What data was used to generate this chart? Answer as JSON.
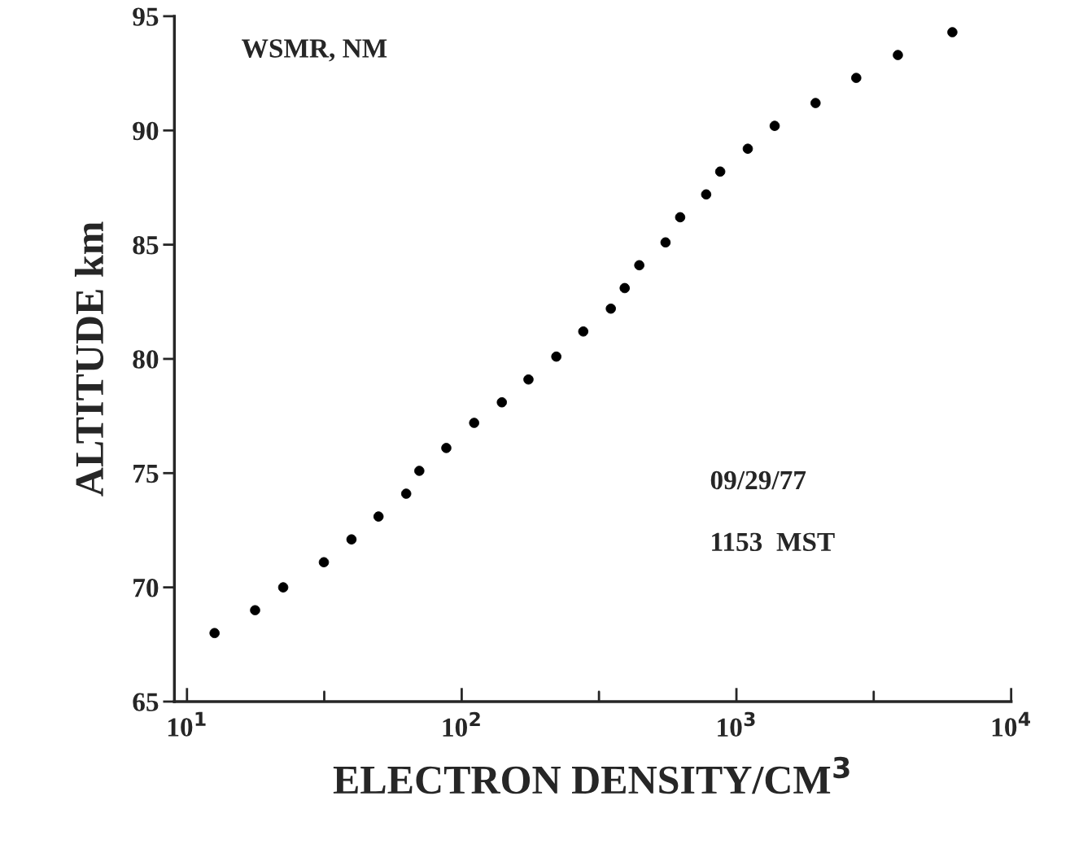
{
  "chart_data": {
    "type": "scatter",
    "xlabel": "ELECTRON DENSITY/CM$^{3}$",
    "ylabel": "ALTITUDE km",
    "x": [
      12.6,
      17.7,
      22.4,
      31.5,
      39.7,
      49.8,
      62.8,
      70.1,
      87.9,
      111,
      140,
      175,
      221,
      277,
      349,
      392,
      443,
      552,
      624,
      776,
      873,
      1100,
      1378,
      1941,
      2730,
      3870,
      6110
    ],
    "series": [
      {
        "color": "#000000",
        "values": [
          68.0,
          69.0,
          70.0,
          71.1,
          72.1,
          73.1,
          74.1,
          75.1,
          76.1,
          77.2,
          78.1,
          79.1,
          80.1,
          81.2,
          82.2,
          83.1,
          84.1,
          85.1,
          86.2,
          87.2,
          88.2,
          89.2,
          90.2,
          91.2,
          92.3,
          93.3,
          94.3
        ]
      }
    ],
    "log": "x",
    "marker": "circle",
    "grid": false,
    "xlim": [
      9,
      10000
    ],
    "xticks": [
      {
        "value": 10,
        "label": "10$^{1}$"
      },
      {
        "value": 31.6,
        "label": null
      },
      {
        "value": 100,
        "label": "10$^{2}$"
      },
      {
        "value": 316,
        "label": null
      },
      {
        "value": 1000,
        "label": "10$^{3}$"
      },
      {
        "value": 3160,
        "label": null
      },
      {
        "value": 10000,
        "label": "10$^{4}$"
      }
    ],
    "ylim": [
      65,
      95
    ],
    "yticks": [
      65,
      70,
      75,
      80,
      85,
      90,
      95
    ],
    "annotations": [
      {
        "text": "WSMR, NM"
      },
      {
        "text": "09/29/77"
      },
      {
        "text": "1153  MST"
      }
    ]
  }
}
